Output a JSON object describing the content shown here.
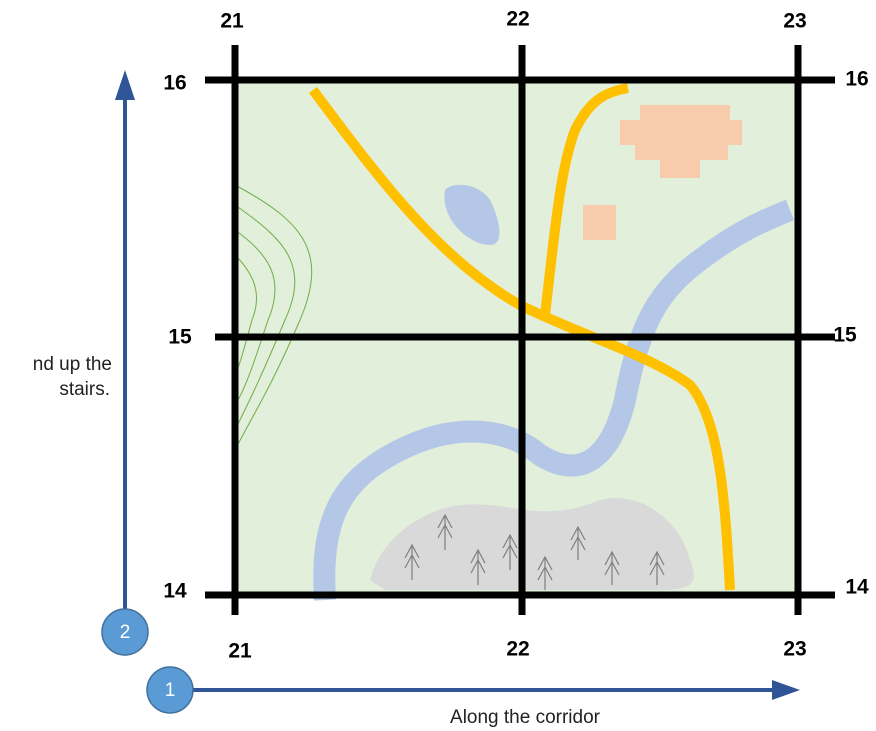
{
  "grid": {
    "columns": [
      "21",
      "22",
      "23"
    ],
    "rows": [
      "16",
      "15",
      "14"
    ]
  },
  "axes": {
    "x": {
      "marker": "1",
      "label": "Along the corridor"
    },
    "y": {
      "marker": "2",
      "label_lines": [
        "nd up the",
        "stairs."
      ]
    }
  }
}
